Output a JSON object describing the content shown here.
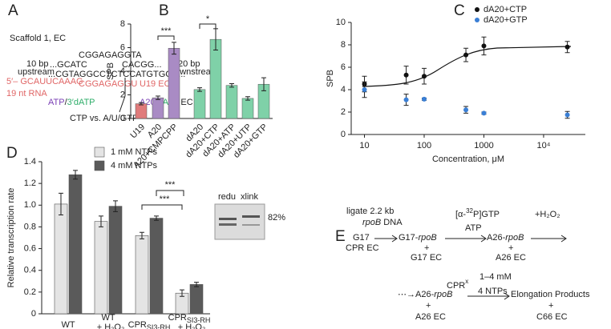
{
  "panel_labels": [
    "A",
    "B",
    "C",
    "D",
    "E"
  ],
  "chart_data": [
    {
      "type": "bar",
      "y_label": "SPB",
      "categories": [
        "U19",
        "A20",
        "A20+CMPCPP",
        "dA20",
        "dA20+CTP",
        "dA20+ATP",
        "dA20+UTP",
        "dA20+GTP"
      ],
      "values": [
        1.25,
        1.75,
        5.95,
        2.45,
        6.7,
        2.8,
        1.7,
        2.9
      ],
      "errors": [
        0.1,
        0.15,
        0.5,
        0.15,
        0.9,
        0.15,
        0.15,
        0.55
      ],
      "colors": [
        "#e07b7b",
        "#a98bc4",
        "#a98bc4",
        "#7fd1a8",
        "#7fd1a8",
        "#7fd1a8",
        "#7fd1a8",
        "#7fd1a8"
      ],
      "ylim": [
        0,
        8
      ],
      "yticks": [
        0,
        2,
        4,
        6,
        8
      ],
      "annotations": [
        "***",
        "*"
      ]
    },
    {
      "type": "scatter",
      "x_label": "Concentration, μM",
      "y_label": "SPB",
      "log_x": true,
      "xlim": [
        6,
        50000
      ],
      "xticks": [
        10,
        100,
        1000,
        {
          "value": 10000,
          "label": "10⁴"
        }
      ],
      "ylim": [
        0,
        10
      ],
      "yticks": [
        0,
        2,
        4,
        6,
        8,
        10
      ],
      "legend": "upper right",
      "series": [
        {
          "name": "dA20+CTP",
          "color": "#111111",
          "x": [
            10,
            50,
            100,
            500,
            1000,
            25000
          ],
          "values": [
            4.5,
            5.3,
            5.2,
            7.1,
            7.9,
            7.8
          ],
          "errors": [
            0.7,
            0.8,
            0.7,
            0.6,
            0.8,
            0.5
          ]
        },
        {
          "name": "dA20+GTP",
          "color": "#3a7fd5",
          "x": [
            10,
            50,
            100,
            500,
            1000,
            25000
          ],
          "values": [
            4.0,
            3.1,
            3.15,
            2.2,
            1.9,
            1.75
          ],
          "errors": [
            0.7,
            0.5,
            0.1,
            0.3,
            0.1,
            0.3
          ]
        }
      ]
    },
    {
      "type": "grouped_bar",
      "y_label": "Relative transcription rate",
      "categories": [
        {
          "text": "WT"
        },
        {
          "text": "WT",
          "note": "+ H₂O₂"
        },
        {
          "text": "CPR",
          "sub": "SI3-RH"
        },
        {
          "text": "CPR",
          "sub": "SI3-RH",
          "note": "+ H₂O₂"
        }
      ],
      "series": [
        {
          "name": "1 mM NTPs",
          "color": "#e4e4e4",
          "values": [
            1.01,
            0.85,
            0.72,
            0.19
          ],
          "errors": [
            0.1,
            0.05,
            0.03,
            0.03
          ]
        },
        {
          "name": "4 mM NTPs",
          "color": "#5a5a5a",
          "values": [
            1.28,
            0.99,
            0.88,
            0.27
          ],
          "errors": [
            0.04,
            0.05,
            0.02,
            0.02
          ]
        }
      ],
      "ylim": [
        0,
        1.4
      ],
      "yticks": [
        0,
        0.2,
        0.4,
        0.6,
        0.8,
        {
          "value": 1,
          "label": "1.0"
        },
        1.2,
        1.4
      ],
      "legend": "upper center",
      "annotations": [
        "***",
        "***"
      ]
    }
  ],
  "panel_a": {
    "title": "Scaffold 1, EC",
    "nt_top": "CGGAGAGGTA",
    "up_len": "10 bp",
    "up": "upstream",
    "nt_left": "...GCATC",
    "nt_right": "CACGG...",
    "down_len": "20 bp",
    "down": "downstream",
    "template": "...CGTAGGCCTCTCCATGTGCC...",
    "rna5": "5′– GCAUUCAAAG",
    "rna3": "CGGAGAGGU",
    "u19": "U19 EC",
    "rna_len": "19 nt RNA",
    "nuc": [
      "ATP",
      "/",
      "3′dATP"
    ],
    "ec": [
      "A20",
      "/",
      "dA20",
      " EC"
    ],
    "compare": "CTP vs. A/U/GTP"
  },
  "panel_d_inset": {
    "lanes": [
      "redu",
      "xlink"
    ],
    "percent": "82%"
  },
  "panel_e": {
    "ligate": "ligate 2.2 kb",
    "dna": [
      "rpoB",
      " DNA"
    ],
    "g17": "G17",
    "cpr_ec": "CPR EC",
    "product1": [
      "G17-",
      "rpoB"
    ],
    "plus": [
      "+",
      "+",
      "+",
      "+"
    ],
    "g17_ec": "G17 EC",
    "label32": [
      "[α-",
      "32",
      "P]GTP"
    ],
    "atp": "ATP",
    "product2": [
      "A26-",
      "rpoB"
    ],
    "a26_ec": "A26 EC",
    "h2o2": "+H₂O₂",
    "cprx": [
      "CPR",
      "x"
    ],
    "ntp_conc": "1–4 mM",
    "ntps": "4 NTPs",
    "start": [
      "⋯→A26-",
      "rpoB"
    ],
    "a26_ec2": "A26 EC",
    "elong": "Elongation Products",
    "c66": "C66 EC"
  }
}
